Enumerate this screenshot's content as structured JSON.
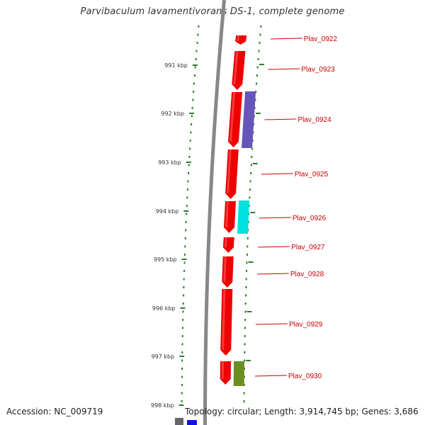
{
  "title": "Parvibaculum lavamentivorans DS-1, complete genome",
  "accession": "Accession: NC_009719",
  "summary": "Topology: circular; Length: 3,914,745 bp; Genes: 3,686",
  "colors": {
    "forward_gene": "#ee0000",
    "gene_label": "#cc0000",
    "backbone": "#888888",
    "tick": "#2e7d2e",
    "scale_text": "#333333",
    "blue_feature": "#6655bb",
    "cyan_feature": "#00e0e0",
    "olive_feature": "#6b8e23",
    "bottom_feature": "#1010ee"
  },
  "scale_labels": [
    "991 kbp",
    "992 kbp",
    "993 kbp",
    "994 kbp",
    "995 kbp",
    "996 kbp",
    "997 kbp",
    "998 kbp"
  ],
  "genes": [
    {
      "label": "Plav_0922",
      "strand": "forward"
    },
    {
      "label": "Plav_0923",
      "strand": "forward"
    },
    {
      "label": "Plav_0924",
      "strand": "forward"
    },
    {
      "label": "Plav_0925",
      "strand": "forward"
    },
    {
      "label": "Plav_0926",
      "strand": "forward"
    },
    {
      "label": "Plav_0927",
      "strand": "forward"
    },
    {
      "label": "Plav_0928",
      "strand": "forward"
    },
    {
      "label": "Plav_0929",
      "strand": "forward"
    },
    {
      "label": "Plav_0930",
      "strand": "forward"
    }
  ],
  "features": [
    {
      "name": "blue-feature",
      "gene": "Plav_0924"
    },
    {
      "name": "cyan-feature",
      "gene": "Plav_0926"
    },
    {
      "name": "olive-feature",
      "gene": "Plav_0930"
    },
    {
      "name": "bottom-feature",
      "gene": ""
    }
  ]
}
